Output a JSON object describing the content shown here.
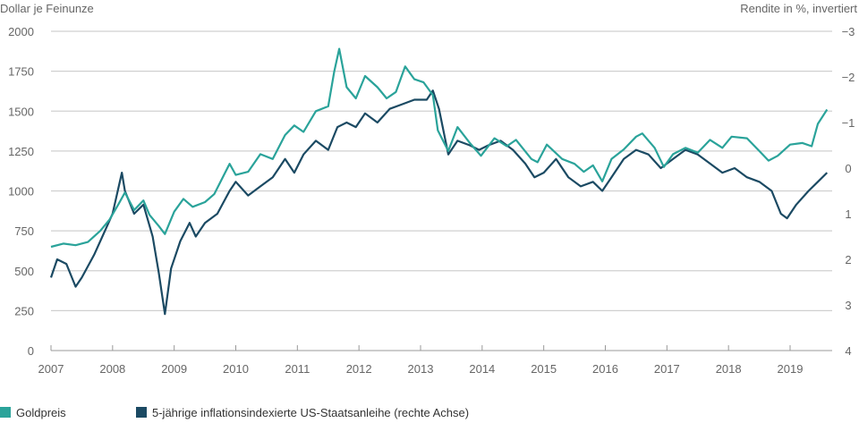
{
  "chart_data": {
    "type": "line",
    "left_axis": {
      "label": "Dollar je Feinunze",
      "ylim": [
        0,
        2000
      ],
      "ticks": [
        "0",
        "250",
        "500",
        "750",
        "1000",
        "1250",
        "1500",
        "1750",
        "2000"
      ]
    },
    "right_axis": {
      "label": "Rendite in %, invertiert",
      "ylim": [
        4,
        -3
      ],
      "inverted": true,
      "ticks": [
        "4",
        "3",
        "2",
        "1",
        "0",
        "−1",
        "−2",
        "−3"
      ]
    },
    "x_axis": {
      "xlim": [
        2007,
        2019.7
      ],
      "ticks": [
        "2007",
        "2008",
        "2009",
        "2010",
        "2011",
        "2012",
        "2013",
        "2014",
        "2015",
        "2016",
        "2017",
        "2018",
        "2019"
      ]
    },
    "grid": true,
    "legend_position": "bottom-left",
    "series": [
      {
        "name": "Goldpreis",
        "axis": "left",
        "color": "#2aa39a",
        "x": [
          2007.0,
          2007.2,
          2007.4,
          2007.6,
          2007.8,
          2007.95,
          2008.1,
          2008.2,
          2008.35,
          2008.5,
          2008.6,
          2008.75,
          2008.85,
          2009.0,
          2009.15,
          2009.3,
          2009.5,
          2009.65,
          2009.9,
          2010.0,
          2010.2,
          2010.4,
          2010.6,
          2010.8,
          2010.95,
          2011.1,
          2011.3,
          2011.5,
          2011.6,
          2011.68,
          2011.8,
          2011.95,
          2012.1,
          2012.3,
          2012.45,
          2012.6,
          2012.75,
          2012.9,
          2013.05,
          2013.2,
          2013.28,
          2013.45,
          2013.6,
          2013.8,
          2013.98,
          2014.2,
          2014.4,
          2014.55,
          2014.8,
          2014.9,
          2015.05,
          2015.3,
          2015.5,
          2015.65,
          2015.8,
          2015.95,
          2016.1,
          2016.3,
          2016.5,
          2016.6,
          2016.8,
          2016.95,
          2017.1,
          2017.3,
          2017.5,
          2017.7,
          2017.9,
          2018.05,
          2018.3,
          2018.5,
          2018.65,
          2018.8,
          2019.0,
          2019.2,
          2019.35,
          2019.45,
          2019.6
        ],
        "y": [
          650,
          670,
          660,
          680,
          750,
          820,
          920,
          990,
          880,
          940,
          850,
          780,
          730,
          870,
          950,
          900,
          930,
          980,
          1170,
          1100,
          1120,
          1230,
          1200,
          1350,
          1410,
          1370,
          1500,
          1530,
          1750,
          1890,
          1650,
          1580,
          1720,
          1650,
          1580,
          1620,
          1780,
          1700,
          1680,
          1600,
          1380,
          1250,
          1400,
          1300,
          1220,
          1330,
          1280,
          1320,
          1200,
          1180,
          1290,
          1200,
          1170,
          1120,
          1160,
          1060,
          1200,
          1260,
          1340,
          1360,
          1270,
          1150,
          1230,
          1270,
          1240,
          1320,
          1270,
          1340,
          1330,
          1250,
          1190,
          1220,
          1290,
          1300,
          1280,
          1420,
          1510
        ]
      },
      {
        "name": "5-jährige inflationsindexierte US-Staatsanleihe (rechte Achse)",
        "axis": "right",
        "color": "#1b4a63",
        "x": [
          2007.0,
          2007.1,
          2007.25,
          2007.4,
          2007.5,
          2007.7,
          2007.9,
          2008.0,
          2008.15,
          2008.2,
          2008.35,
          2008.5,
          2008.65,
          2008.75,
          2008.85,
          2008.95,
          2009.1,
          2009.25,
          2009.35,
          2009.5,
          2009.7,
          2009.9,
          2010.0,
          2010.2,
          2010.4,
          2010.6,
          2010.8,
          2010.95,
          2011.1,
          2011.3,
          2011.5,
          2011.65,
          2011.8,
          2011.95,
          2012.1,
          2012.3,
          2012.5,
          2012.7,
          2012.9,
          2013.1,
          2013.2,
          2013.3,
          2013.45,
          2013.6,
          2013.8,
          2013.95,
          2014.1,
          2014.3,
          2014.5,
          2014.7,
          2014.85,
          2015.0,
          2015.2,
          2015.4,
          2015.6,
          2015.8,
          2015.95,
          2016.1,
          2016.3,
          2016.5,
          2016.7,
          2016.9,
          2017.1,
          2017.3,
          2017.5,
          2017.7,
          2017.9,
          2018.1,
          2018.3,
          2018.5,
          2018.7,
          2018.85,
          2018.95,
          2019.1,
          2019.3,
          2019.45,
          2019.6
        ],
        "y": [
          2.4,
          2.0,
          2.1,
          2.6,
          2.4,
          1.9,
          1.3,
          1.0,
          0.1,
          0.5,
          1.0,
          0.8,
          1.5,
          2.3,
          3.2,
          2.2,
          1.6,
          1.2,
          1.5,
          1.2,
          1.0,
          0.5,
          0.3,
          0.6,
          0.4,
          0.2,
          -0.2,
          0.1,
          -0.3,
          -0.6,
          -0.4,
          -0.9,
          -1.0,
          -0.9,
          -1.2,
          -1.0,
          -1.3,
          -1.4,
          -1.5,
          -1.5,
          -1.7,
          -1.3,
          -0.3,
          -0.6,
          -0.5,
          -0.4,
          -0.5,
          -0.6,
          -0.4,
          -0.1,
          0.2,
          0.1,
          -0.2,
          0.2,
          0.4,
          0.3,
          0.5,
          0.2,
          -0.2,
          -0.4,
          -0.3,
          0.0,
          -0.2,
          -0.4,
          -0.3,
          -0.1,
          0.1,
          0.0,
          0.2,
          0.3,
          0.5,
          1.0,
          1.1,
          0.8,
          0.5,
          0.3,
          0.1
        ]
      }
    ]
  }
}
